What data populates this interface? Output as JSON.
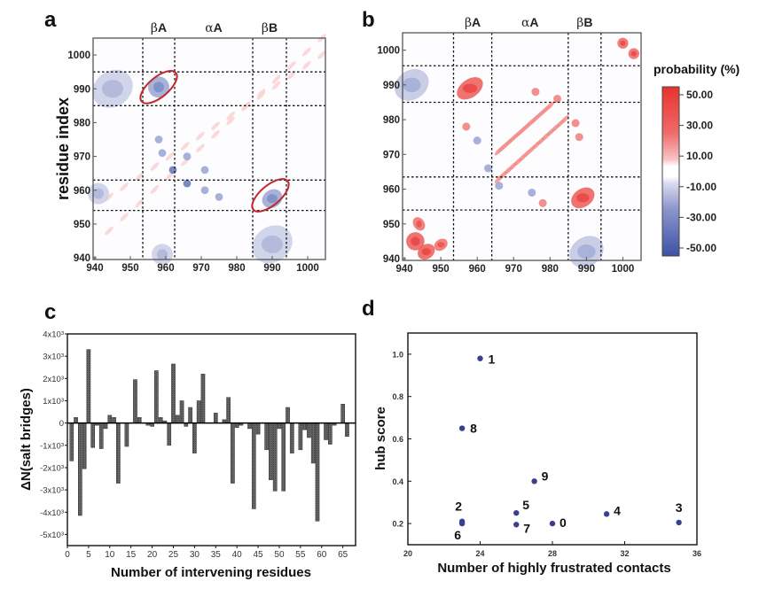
{
  "figure": {
    "panel_labels": [
      "a",
      "b",
      "c",
      "d"
    ]
  },
  "chart_data": [
    {
      "id": "a",
      "type": "heatmap",
      "title": "",
      "ylabel": "residue index",
      "xlabel": "",
      "xlim": [
        939.5,
        1005
      ],
      "ylim": [
        939.5,
        1005
      ],
      "xticks": [
        940,
        950,
        960,
        970,
        980,
        990,
        1000
      ],
      "yticks": [
        940,
        950,
        960,
        970,
        980,
        990,
        1000
      ],
      "secondary_structure": [
        {
          "label_greek": "β",
          "label_latin": "A",
          "start": 953.5,
          "end": 962.5
        },
        {
          "label_greek": "α",
          "label_latin": "A",
          "start": 962.5,
          "end": 984.5
        },
        {
          "label_greek": "β",
          "label_latin": "B",
          "start": 984.5,
          "end": 994
        }
      ],
      "dashed_lines_x": [
        953.5,
        962.5,
        984.5,
        994
      ],
      "dashed_lines_y": [
        954,
        963,
        985,
        995
      ],
      "annotations": [
        {
          "shape": "ellipse",
          "color": "#c0282b",
          "center": [
            958,
            990.5
          ],
          "note": "highlighted blue βA–βB region"
        },
        {
          "shape": "ellipse",
          "color": "#c0282b",
          "center": [
            989.5,
            958.5
          ],
          "note": "highlighted blue βB–βA region"
        }
      ],
      "features": [
        {
          "kind": "diagonal-band",
          "sign": "positive",
          "intensity": 0.22,
          "from": [
            944,
            958
          ],
          "to": [
            1004,
            1000
          ]
        },
        {
          "kind": "diagonal-band",
          "sign": "positive",
          "intensity": 0.22,
          "from": [
            944,
            948
          ],
          "to": [
            1004,
            1005
          ]
        },
        {
          "kind": "cluster",
          "sign": "negative",
          "intensity": 0.3,
          "center": [
            945,
            990
          ],
          "size": [
            6,
            5
          ]
        },
        {
          "kind": "cluster",
          "sign": "negative",
          "intensity": 0.3,
          "center": [
            990,
            944
          ],
          "size": [
            6,
            5
          ]
        },
        {
          "kind": "cluster",
          "sign": "negative",
          "intensity": 0.55,
          "center": [
            958,
            990.5
          ],
          "size": [
            3,
            3
          ]
        },
        {
          "kind": "cluster",
          "sign": "negative",
          "intensity": 0.55,
          "center": [
            990,
            957.5
          ],
          "size": [
            3,
            2.5
          ]
        },
        {
          "kind": "spot",
          "sign": "negative",
          "intensity": 0.75,
          "center": [
            962,
            966
          ]
        },
        {
          "kind": "spot",
          "sign": "negative",
          "intensity": 0.75,
          "center": [
            966,
            962
          ]
        },
        {
          "kind": "spot",
          "sign": "negative",
          "intensity": 0.5,
          "center": [
            958,
            975
          ]
        },
        {
          "kind": "spot",
          "sign": "negative",
          "intensity": 0.5,
          "center": [
            959,
            971
          ]
        },
        {
          "kind": "spot",
          "sign": "negative",
          "intensity": 0.5,
          "center": [
            966,
            970
          ]
        },
        {
          "kind": "spot",
          "sign": "negative",
          "intensity": 0.5,
          "center": [
            971,
            966
          ]
        },
        {
          "kind": "spot",
          "sign": "negative",
          "intensity": 0.5,
          "center": [
            971,
            960
          ]
        },
        {
          "kind": "spot",
          "sign": "negative",
          "intensity": 0.5,
          "center": [
            975,
            958
          ]
        },
        {
          "kind": "cluster",
          "sign": "negative",
          "intensity": 0.3,
          "center": [
            941,
            959
          ],
          "size": [
            3,
            3
          ]
        },
        {
          "kind": "cluster",
          "sign": "negative",
          "intensity": 0.3,
          "center": [
            959,
            941
          ],
          "size": [
            3,
            3
          ]
        }
      ]
    },
    {
      "id": "b",
      "type": "heatmap",
      "title": "",
      "ylabel": "",
      "xlabel": "",
      "xlim": [
        939.5,
        1005
      ],
      "ylim": [
        939.5,
        1005
      ],
      "xticks": [
        940,
        950,
        960,
        970,
        980,
        990,
        1000
      ],
      "yticks": [
        940,
        950,
        960,
        970,
        980,
        990,
        1000
      ],
      "secondary_structure": [
        {
          "label_greek": "β",
          "label_latin": "A",
          "start": 953.5,
          "end": 964
        },
        {
          "label_greek": "α",
          "label_latin": "A",
          "start": 964,
          "end": 985
        },
        {
          "label_greek": "β",
          "label_latin": "B",
          "start": 985,
          "end": 994
        }
      ],
      "dashed_lines_x": [
        953.5,
        964,
        985,
        994
      ],
      "dashed_lines_y": [
        954,
        963.5,
        985,
        995.5
      ],
      "colorbar": {
        "title": "probability (%)",
        "ticks": [
          "50.00",
          "30.00",
          "10.00",
          "-10.00",
          "-30.00",
          "-50.00"
        ],
        "range": [
          -55,
          55
        ],
        "colors": {
          "positive": "#e8322e",
          "neutral": "#ffffff",
          "negative": "#3c52a6"
        }
      },
      "features": [
        {
          "kind": "diagonal-band",
          "sign": "positive",
          "intensity": 0.55,
          "from": [
            966,
            971
          ],
          "to": [
            980,
            984
          ]
        },
        {
          "kind": "diagonal-band",
          "sign": "positive",
          "intensity": 0.55,
          "from": [
            966,
            963
          ],
          "to": [
            984,
            980
          ]
        },
        {
          "kind": "cluster",
          "sign": "positive",
          "intensity": 0.85,
          "center": [
            958,
            989
          ],
          "size": [
            4,
            2.5
          ]
        },
        {
          "kind": "cluster",
          "sign": "positive",
          "intensity": 0.85,
          "center": [
            989,
            957.5
          ],
          "size": [
            3.5,
            2.5
          ]
        },
        {
          "kind": "cluster",
          "sign": "positive",
          "intensity": 0.85,
          "center": [
            943,
            945
          ],
          "size": [
            2.5,
            2.5
          ]
        },
        {
          "kind": "cluster",
          "sign": "positive",
          "intensity": 0.85,
          "center": [
            946,
            942
          ],
          "size": [
            2.5,
            2
          ]
        },
        {
          "kind": "cluster",
          "sign": "positive",
          "intensity": 0.75,
          "center": [
            950,
            944
          ],
          "size": [
            2,
            1.5
          ]
        },
        {
          "kind": "cluster",
          "sign": "positive",
          "intensity": 0.75,
          "center": [
            944,
            950
          ],
          "size": [
            1.5,
            2
          ]
        },
        {
          "kind": "cluster",
          "sign": "positive",
          "intensity": 0.8,
          "center": [
            1000,
            1002
          ],
          "size": [
            1.5,
            1.5
          ]
        },
        {
          "kind": "cluster",
          "sign": "positive",
          "intensity": 0.8,
          "center": [
            1003,
            999
          ],
          "size": [
            1.5,
            1.5
          ]
        },
        {
          "kind": "cluster",
          "sign": "negative",
          "intensity": 0.35,
          "center": [
            942,
            990
          ],
          "size": [
            5,
            4
          ]
        },
        {
          "kind": "cluster",
          "sign": "negative",
          "intensity": 0.35,
          "center": [
            990,
            942
          ],
          "size": [
            5,
            4
          ]
        },
        {
          "kind": "spot",
          "sign": "negative",
          "intensity": 0.5,
          "center": [
            963,
            966
          ]
        },
        {
          "kind": "spot",
          "sign": "negative",
          "intensity": 0.5,
          "center": [
            960,
            974
          ]
        },
        {
          "kind": "spot",
          "sign": "negative",
          "intensity": 0.5,
          "center": [
            975,
            959
          ]
        },
        {
          "kind": "spot",
          "sign": "negative",
          "intensity": 0.5,
          "center": [
            966,
            961
          ]
        },
        {
          "kind": "spot",
          "sign": "positive",
          "intensity": 0.6,
          "center": [
            957,
            978
          ]
        },
        {
          "kind": "spot",
          "sign": "positive",
          "intensity": 0.6,
          "center": [
            987,
            979
          ]
        },
        {
          "kind": "spot",
          "sign": "positive",
          "intensity": 0.6,
          "center": [
            988,
            975
          ]
        },
        {
          "kind": "spot",
          "sign": "positive",
          "intensity": 0.6,
          "center": [
            978,
            956
          ]
        },
        {
          "kind": "spot",
          "sign": "positive",
          "intensity": 0.6,
          "center": [
            976,
            988
          ]
        },
        {
          "kind": "spot",
          "sign": "positive",
          "intensity": 0.6,
          "center": [
            982,
            986
          ]
        }
      ]
    },
    {
      "id": "c",
      "type": "bar",
      "title": "",
      "xlabel": "Number of intervening residues",
      "ylabel": "ΔN(salt bridges)",
      "xlim": [
        0,
        68
      ],
      "ylim": [
        -5500,
        4000
      ],
      "xticks": [
        0,
        5,
        10,
        15,
        20,
        25,
        30,
        35,
        40,
        45,
        50,
        55,
        60,
        65
      ],
      "yticks": [
        {
          "value": 4000,
          "label": "4x10³"
        },
        {
          "value": 3000,
          "label": "3x10³"
        },
        {
          "value": 2000,
          "label": "2x10³"
        },
        {
          "value": 1000,
          "label": "1x10³"
        },
        {
          "value": 0,
          "label": "0"
        },
        {
          "value": -1000,
          "label": "-1x10³"
        },
        {
          "value": -2000,
          "label": "-2x10³"
        },
        {
          "value": -3000,
          "label": "-3x10³"
        },
        {
          "value": -4000,
          "label": "-4x10³"
        },
        {
          "value": -5000,
          "label": "-5x10³"
        }
      ],
      "grid": false,
      "categories": [
        1,
        2,
        3,
        4,
        5,
        6,
        7,
        8,
        9,
        10,
        11,
        12,
        13,
        14,
        15,
        16,
        17,
        18,
        19,
        20,
        21,
        22,
        23,
        24,
        25,
        26,
        27,
        28,
        29,
        30,
        31,
        32,
        33,
        34,
        35,
        36,
        37,
        38,
        39,
        40,
        41,
        42,
        43,
        44,
        45,
        46,
        47,
        48,
        49,
        50,
        51,
        52,
        53,
        54,
        55,
        56,
        57,
        58,
        59,
        60,
        61,
        62,
        63,
        64,
        65,
        66
      ],
      "values": [
        -1700,
        250,
        -4150,
        -2050,
        3300,
        -1100,
        -100,
        -1150,
        -250,
        350,
        250,
        -2700,
        0,
        -1050,
        0,
        1950,
        250,
        0,
        -100,
        -150,
        2350,
        250,
        100,
        -1000,
        2650,
        350,
        1000,
        -150,
        700,
        -1350,
        1000,
        2200,
        0,
        0,
        450,
        0,
        150,
        1150,
        -2700,
        -200,
        -100,
        0,
        -250,
        -3850,
        -500,
        0,
        -1200,
        -2550,
        -3050,
        -250,
        -3050,
        700,
        -1350,
        0,
        -1200,
        -300,
        -650,
        -1800,
        -4400,
        0,
        -750,
        -950,
        -100,
        0,
        850,
        -600
      ]
    },
    {
      "id": "d",
      "type": "scatter",
      "title": "",
      "xlabel": "Number of highly frustrated contacts",
      "ylabel": "hub score",
      "xlim": [
        20,
        36
      ],
      "ylim": [
        0.1,
        1.1
      ],
      "xticks": [
        20,
        24,
        28,
        32,
        36
      ],
      "yticks": [
        "0.2",
        "0.4",
        "0.6",
        "0.8",
        "1.0"
      ],
      "grid": false,
      "marker_color": "#3a3f8f",
      "points": [
        {
          "label": "0",
          "x": 28,
          "y": 0.2
        },
        {
          "label": "1",
          "x": 24,
          "y": 0.98
        },
        {
          "label": "2",
          "x": 23,
          "y": 0.21
        },
        {
          "label": "3",
          "x": 35,
          "y": 0.205
        },
        {
          "label": "4",
          "x": 31,
          "y": 0.245
        },
        {
          "label": "5",
          "x": 26,
          "y": 0.25
        },
        {
          "label": "6",
          "x": 23,
          "y": 0.2
        },
        {
          "label": "7",
          "x": 26,
          "y": 0.195
        },
        {
          "label": "8",
          "x": 23,
          "y": 0.65
        },
        {
          "label": "9",
          "x": 27,
          "y": 0.4
        }
      ]
    }
  ]
}
